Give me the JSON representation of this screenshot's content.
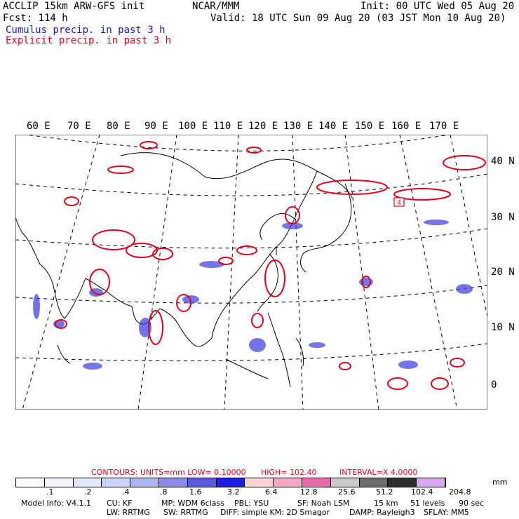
{
  "header": {
    "line1_left": "ACCLIP 15km ARW-GFS init",
    "line1_center": "NCAR/MMM",
    "line1_right": "Init: 00 UTC Wed 05 Aug 20",
    "line2_left": "Fcst:  114 h",
    "line2_right": "Valid: 18 UTC Sun 09 Aug 20 (03 JST Mon 10 Aug 20)",
    "legend_cumulus": "Cumulus precip. in past 3 h",
    "legend_explicit": "Explicit precip. in past 3 h"
  },
  "map": {
    "lon_labels": [
      "60 E",
      "70 E",
      "80 E",
      "90 E",
      "100 E",
      "110 E",
      "120 E",
      "130 E",
      "140 E",
      "150 E",
      "160 E",
      "170 E"
    ],
    "lat_labels": [
      "40 N",
      "30 N",
      "20 N",
      "10 N",
      "0"
    ],
    "max_marker": "4",
    "colors": {
      "cumulus": "#2b2bd8",
      "explicit": "#e0001a",
      "coast": "#000000"
    }
  },
  "contours": {
    "label": "CONTOURS:  UNITS=mm  LOW= 0.10000",
    "high": "HIGH=  102.40",
    "interval": "INTERVAL=X  4.0000"
  },
  "colorbar": {
    "colors": [
      "#ffffff",
      "#f4f4ff",
      "#e2e6fb",
      "#c9d3f7",
      "#adb6f3",
      "#8b8be8",
      "#5b5bdd",
      "#1e1ee6",
      "#f7d0d8",
      "#f3a8c6",
      "#e86aa8",
      "#c8c8c8",
      "#6e6e6e",
      "#2e2e2e",
      "#d7a8ef"
    ],
    "ticks": [
      ".1",
      ".2",
      ".4",
      ".8",
      "1.6",
      "3.2",
      "6.4",
      "12.8",
      "25.6",
      "51.2",
      "102.4",
      "204.8"
    ],
    "unit": "mm"
  },
  "footer": {
    "model_info": "Model Info: V4.1.1",
    "cu": "CU: KF",
    "mp": "MP: WDM 6class",
    "pbl": "PBL: YSU",
    "sf": "SF: Noah LSM",
    "res": "15 km",
    "levels": "51 levels",
    "dt": "90 sec",
    "lw": "LW: RRTMG",
    "sw": "SW: RRTMG",
    "diff": "DIFF: simple KM: 2D Smagor",
    "damp": "DAMP: Rayleigh3",
    "sflay": "SFLAY: MM5"
  }
}
